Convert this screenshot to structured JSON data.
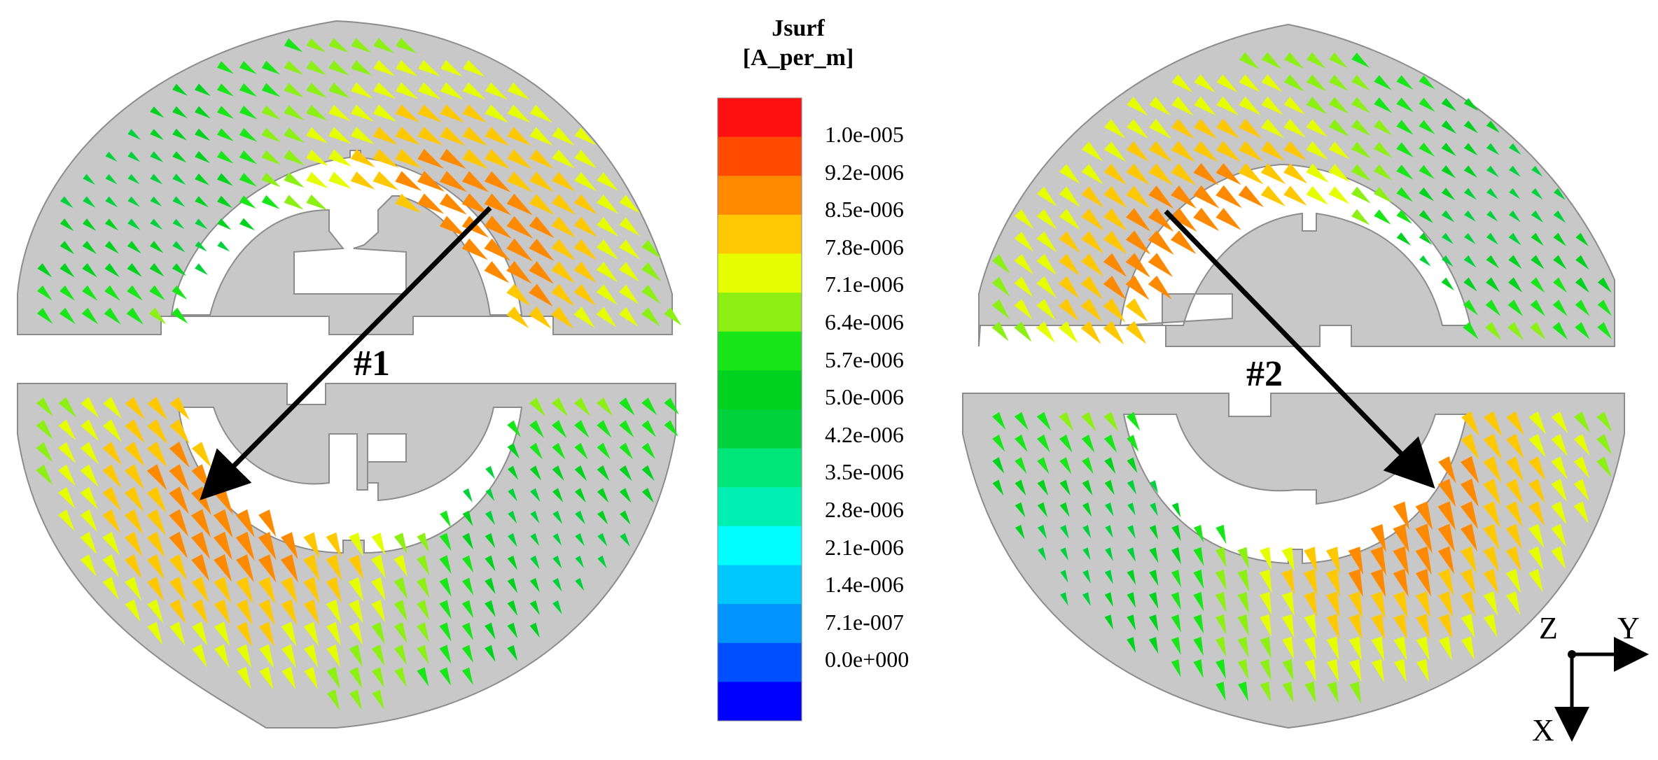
{
  "legend": {
    "title_line1": "Jsurf",
    "title_line2": "[A_per_m]",
    "labels": [
      "1.0e-005",
      "9.2e-006",
      "8.5e-006",
      "7.8e-006",
      "7.1e-006",
      "6.4e-006",
      "5.7e-006",
      "5.0e-006",
      "4.2e-006",
      "3.5e-006",
      "2.8e-006",
      "2.1e-006",
      "1.4e-006",
      "7.1e-007",
      "0.0e+000"
    ],
    "colors": [
      "#ff1010",
      "#ff4a00",
      "#ff8a00",
      "#ffc800",
      "#e6ff00",
      "#8cf014",
      "#18e618",
      "#00d21e",
      "#00d23c",
      "#00e678",
      "#00f0b4",
      "#00ffff",
      "#00c8ff",
      "#0094ff",
      "#0050ff",
      "#0000ff"
    ]
  },
  "labels": {
    "port1": "#1",
    "port2": "#2"
  },
  "axes": {
    "z": "Z",
    "y": "Y",
    "x": "X"
  },
  "colors": {
    "patch": "#c8c8c8",
    "outline": "#8c8c8c",
    "arrow": "#000000"
  }
}
